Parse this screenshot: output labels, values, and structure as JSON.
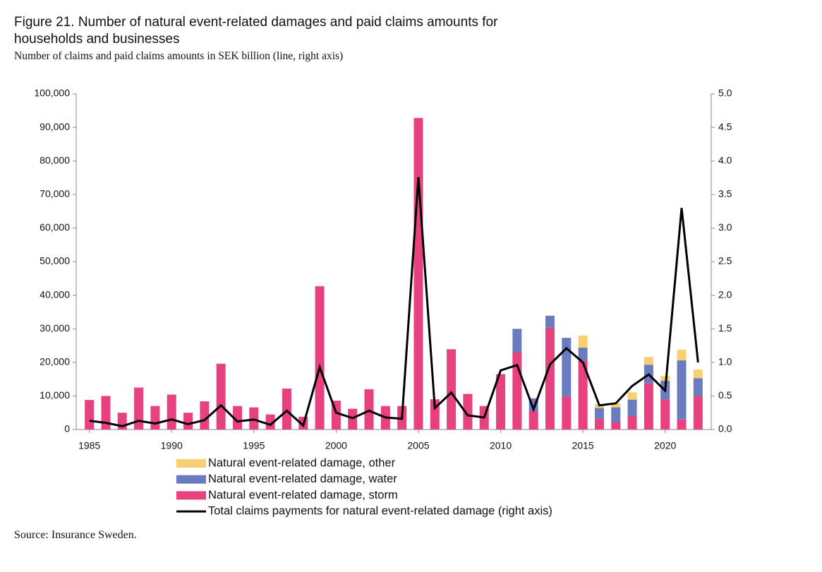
{
  "chart_data": {
    "type": "bar",
    "stacked": true,
    "title": "Figure 21. Number of natural event-related damages and paid claims amounts for households and businesses",
    "subtitle": "Number of claims and paid claims amounts in SEK billion (line, right axis)",
    "source": "Source: Insurance Sweden.",
    "x": [
      1985,
      1986,
      1987,
      1988,
      1989,
      1990,
      1991,
      1992,
      1993,
      1994,
      1995,
      1996,
      1997,
      1998,
      1999,
      2000,
      2001,
      2002,
      2003,
      2004,
      2005,
      2006,
      2007,
      2008,
      2009,
      2010,
      2011,
      2012,
      2013,
      2014,
      2015,
      2016,
      2017,
      2018,
      2019,
      2020,
      2021,
      2022
    ],
    "xlim": [
      1984.2,
      2022.8
    ],
    "xticks": [
      1985,
      1990,
      1995,
      2000,
      2005,
      2010,
      2015,
      2020
    ],
    "ylim": [
      0,
      100000
    ],
    "yticks": [
      0,
      {
        "value": 10000,
        "label": "10,000"
      },
      {
        "value": 20000,
        "label": "20,000"
      },
      {
        "value": 30000,
        "label": "30,000"
      },
      {
        "value": 40000,
        "label": "40,000"
      },
      {
        "value": 50000,
        "label": "50,000"
      },
      {
        "value": 60000,
        "label": "60,000"
      },
      {
        "value": 70000,
        "label": "70,000"
      },
      {
        "value": 80000,
        "label": "80,000"
      },
      {
        "value": 90000,
        "label": "90,000"
      },
      {
        "value": 100000,
        "label": "100,000"
      }
    ],
    "y2lim": [
      0,
      5
    ],
    "y2ticks": [
      {
        "value": 0,
        "label": "0.0"
      },
      {
        "value": 0.5,
        "label": "0.5"
      },
      {
        "value": 1,
        "label": "1.0"
      },
      {
        "value": 1.5,
        "label": "1.5"
      },
      {
        "value": 2,
        "label": "2.0"
      },
      {
        "value": 2.5,
        "label": "2.5"
      },
      {
        "value": 3,
        "label": "3.0"
      },
      {
        "value": 3.5,
        "label": "3.5"
      },
      {
        "value": 4,
        "label": "4.0"
      },
      {
        "value": 4.5,
        "label": "4.5"
      },
      {
        "value": 5,
        "label": "5.0"
      }
    ],
    "grid": false,
    "series": [
      {
        "name": "Natural event-related damage, storm",
        "color": "#e8417f",
        "values": [
          8800,
          10000,
          5000,
          12500,
          7000,
          10400,
          5000,
          8400,
          19600,
          7000,
          6600,
          4500,
          12200,
          3800,
          42700,
          8600,
          6200,
          12000,
          7000,
          7000,
          92800,
          9000,
          23900,
          10600,
          7000,
          16500,
          23000,
          5500,
          30300,
          9800,
          20500,
          3200,
          2200,
          4000,
          13800,
          9000,
          3000,
          10000
        ]
      },
      {
        "name": "Natural event-related damage, water",
        "color": "#6b7bc0",
        "values": [
          0,
          0,
          0,
          0,
          0,
          0,
          0,
          0,
          0,
          0,
          0,
          0,
          0,
          0,
          0,
          0,
          0,
          0,
          0,
          0,
          0,
          0,
          0,
          0,
          0,
          0,
          7000,
          3800,
          3600,
          17500,
          3900,
          3200,
          4400,
          4900,
          5500,
          5500,
          17600,
          5300
        ]
      },
      {
        "name": "Natural event-related damage, other",
        "color": "#f9cf74",
        "values": [
          0,
          0,
          0,
          0,
          0,
          0,
          0,
          0,
          0,
          0,
          0,
          0,
          0,
          0,
          0,
          0,
          0,
          0,
          0,
          0,
          0,
          0,
          0,
          0,
          0,
          0,
          0,
          0,
          0,
          0,
          3600,
          1200,
          1200,
          2200,
          2300,
          1500,
          3200,
          2600
        ]
      },
      {
        "name": "Total claims payments for natural event-related damage (right axis)",
        "color": "#000000",
        "type": "line",
        "axis": "y2",
        "values": [
          0.13,
          0.1,
          0.05,
          0.13,
          0.09,
          0.15,
          0.08,
          0.14,
          0.36,
          0.12,
          0.15,
          0.07,
          0.28,
          0.06,
          0.93,
          0.25,
          0.17,
          0.28,
          0.18,
          0.16,
          3.76,
          0.32,
          0.55,
          0.21,
          0.18,
          0.88,
          0.96,
          0.3,
          0.97,
          1.21,
          1.0,
          0.36,
          0.39,
          0.65,
          0.82,
          0.58,
          3.3,
          1.0
        ]
      }
    ],
    "legend_order": [
      2,
      1,
      0,
      3
    ]
  }
}
